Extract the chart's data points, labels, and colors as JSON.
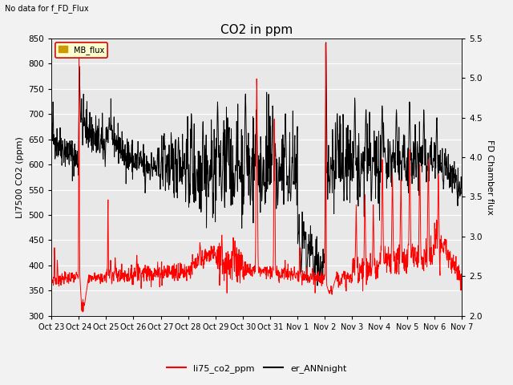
{
  "title": "CO2 in ppm",
  "no_data_text": "No data for f_FD_Flux",
  "ylabel_left": "LI7500 CO2 (ppm)",
  "ylabel_right": "FD Chamber flux",
  "ylim_left": [
    300,
    850
  ],
  "ylim_right": [
    2.0,
    5.5
  ],
  "yticks_left": [
    300,
    350,
    400,
    450,
    500,
    550,
    600,
    650,
    700,
    750,
    800,
    850
  ],
  "yticks_right": [
    2.0,
    2.5,
    3.0,
    3.5,
    4.0,
    4.5,
    5.0,
    5.5
  ],
  "xtick_labels": [
    "Oct 23",
    "Oct 24",
    "Oct 25",
    "Oct 26",
    "Oct 27",
    "Oct 28",
    "Oct 29",
    "Oct 30",
    "Oct 31",
    "Nov 1",
    "Nov 2",
    "Nov 3",
    "Nov 4",
    "Nov 5",
    "Nov 6",
    "Nov 7"
  ],
  "background_color": "#f2f2f2",
  "plot_bg_color": "#e8e8e8",
  "line1_color": "#ff0000",
  "line2_color": "#000000",
  "line1_label": "li75_co2_ppm",
  "line2_label": "er_ANNnight",
  "mb_flux_label": "MB_flux",
  "legend_box_facecolor": "#ffffcc",
  "legend_box_edgecolor": "#cc0000",
  "title_fontsize": 11,
  "label_fontsize": 8,
  "tick_fontsize": 7.5
}
